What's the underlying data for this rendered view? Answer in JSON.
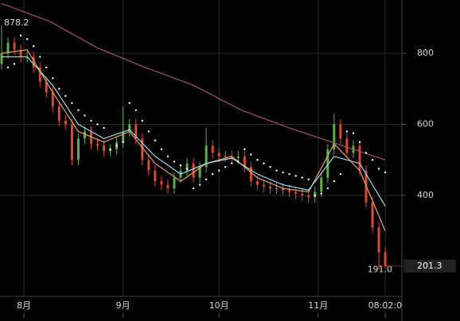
{
  "chart_data": {
    "type": "candlestick",
    "x": [
      0,
      2,
      4,
      6,
      8,
      10,
      12,
      14,
      16,
      18,
      20,
      22,
      24,
      26,
      28,
      30,
      32,
      34,
      36,
      38,
      40,
      42,
      44,
      46,
      48,
      50,
      52,
      54,
      56,
      58,
      60,
      62,
      64,
      66,
      68,
      70,
      72,
      74,
      76,
      78,
      80,
      82,
      84,
      86,
      88,
      90,
      92,
      94,
      96,
      98,
      100,
      102,
      104,
      106,
      108,
      110,
      112,
      114,
      116,
      118,
      120
    ],
    "open": [
      770,
      800,
      830,
      810,
      790,
      790,
      760,
      720,
      690,
      650,
      610,
      600,
      500,
      560,
      580,
      545,
      540,
      525,
      530,
      550,
      580,
      600,
      560,
      500,
      470,
      440,
      430,
      420,
      450,
      470,
      490,
      450,
      480,
      540,
      520,
      510,
      510,
      505,
      510,
      480,
      440,
      430,
      425,
      420,
      420,
      415,
      410,
      405,
      400,
      395,
      410,
      450,
      530,
      600,
      560,
      520,
      540,
      470,
      380,
      310,
      240
    ],
    "high": [
      878.2,
      845,
      845,
      825,
      805,
      805,
      775,
      735,
      705,
      665,
      625,
      615,
      575,
      595,
      595,
      560,
      555,
      545,
      565,
      650,
      615,
      615,
      575,
      515,
      485,
      455,
      445,
      465,
      485,
      505,
      505,
      495,
      590,
      555,
      535,
      525,
      525,
      525,
      525,
      495,
      455,
      445,
      440,
      435,
      435,
      430,
      425,
      420,
      415,
      425,
      465,
      545,
      630,
      615,
      575,
      555,
      555,
      485,
      395,
      325,
      255
    ],
    "low": [
      755,
      785,
      795,
      775,
      775,
      745,
      705,
      675,
      635,
      595,
      585,
      485,
      485,
      545,
      530,
      525,
      510,
      510,
      515,
      535,
      565,
      545,
      485,
      455,
      425,
      415,
      405,
      405,
      435,
      455,
      435,
      435,
      465,
      505,
      495,
      495,
      490,
      490,
      465,
      425,
      415,
      410,
      405,
      405,
      400,
      395,
      390,
      385,
      380,
      380,
      395,
      435,
      515,
      545,
      505,
      505,
      455,
      365,
      295,
      191.0,
      195
    ],
    "close": [
      800,
      830,
      810,
      790,
      790,
      760,
      720,
      690,
      650,
      610,
      600,
      500,
      560,
      580,
      545,
      540,
      525,
      530,
      550,
      580,
      600,
      560,
      500,
      470,
      440,
      430,
      420,
      450,
      470,
      490,
      450,
      480,
      540,
      520,
      510,
      510,
      505,
      510,
      480,
      440,
      430,
      425,
      420,
      420,
      415,
      410,
      405,
      400,
      395,
      410,
      450,
      530,
      600,
      560,
      520,
      540,
      470,
      380,
      310,
      240,
      201.3
    ],
    "low_label": "191.0",
    "up_color": "#5fb04a",
    "down_color": "#e0482e",
    "overlays": [
      {
        "type": "line",
        "color": "#a8506f",
        "x": [
          0,
          15,
          30,
          45,
          60,
          75,
          90,
          105,
          120
        ],
        "values": [
          940,
          890,
          815,
          760,
          710,
          640,
          590,
          545,
          500
        ]
      },
      {
        "type": "line",
        "color": "#f0a060",
        "x": [
          0,
          8,
          16,
          24,
          32,
          40,
          48,
          56,
          64,
          72,
          80,
          88,
          96,
          104,
          112,
          120
        ],
        "values": [
          800,
          810,
          690,
          580,
          550,
          580,
          490,
          440,
          490,
          510,
          450,
          420,
          410,
          545,
          470,
          300
        ]
      },
      {
        "type": "line",
        "color": "#8fe0ee",
        "x": [
          0,
          8,
          16,
          24,
          32,
          40,
          48,
          56,
          64,
          72,
          80,
          88,
          96,
          104,
          112,
          120
        ],
        "values": [
          790,
          790,
          710,
          600,
          560,
          585,
          510,
          460,
          490,
          505,
          460,
          430,
          415,
          510,
          490,
          370
        ]
      },
      {
        "type": "dots",
        "color": "#ffffff",
        "x": [
          2,
          4,
          6,
          8,
          10,
          12,
          14,
          16,
          18,
          20,
          22,
          24,
          26,
          28,
          30,
          32,
          34,
          36,
          38,
          40,
          42,
          44,
          46,
          48,
          50,
          52,
          54,
          56,
          58,
          60,
          62,
          64,
          66,
          68,
          70,
          72,
          74,
          76,
          78,
          80,
          82,
          84,
          86,
          88,
          90,
          92,
          94,
          96,
          98,
          100,
          102,
          104,
          106,
          108,
          110,
          112,
          114,
          116,
          118,
          120
        ],
        "values": [
          760,
          770,
          850,
          840,
          820,
          790,
          760,
          730,
          700,
          680,
          660,
          640,
          625,
          610,
          600,
          590,
          530,
          540,
          550,
          660,
          640,
          610,
          580,
          555,
          530,
          510,
          495,
          485,
          475,
          420,
          430,
          445,
          460,
          470,
          480,
          490,
          495,
          530,
          515,
          500,
          490,
          480,
          470,
          465,
          460,
          455,
          450,
          445,
          400,
          405,
          420,
          440,
          460,
          580,
          575,
          550,
          520,
          500,
          475,
          465
        ]
      }
    ],
    "xlim": [
      -0.5,
      125.2
    ],
    "ylim": [
      116,
      950
    ],
    "yticks": [
      400,
      600,
      800
    ],
    "xticks": [
      {
        "value": 7,
        "label": "8月"
      },
      {
        "value": 38,
        "label": "9月"
      },
      {
        "value": 68,
        "label": "10月"
      },
      {
        "value": 99,
        "label": "11月"
      },
      {
        "value": 120,
        "label": "08:02:0"
      }
    ],
    "grid": true
  }
}
